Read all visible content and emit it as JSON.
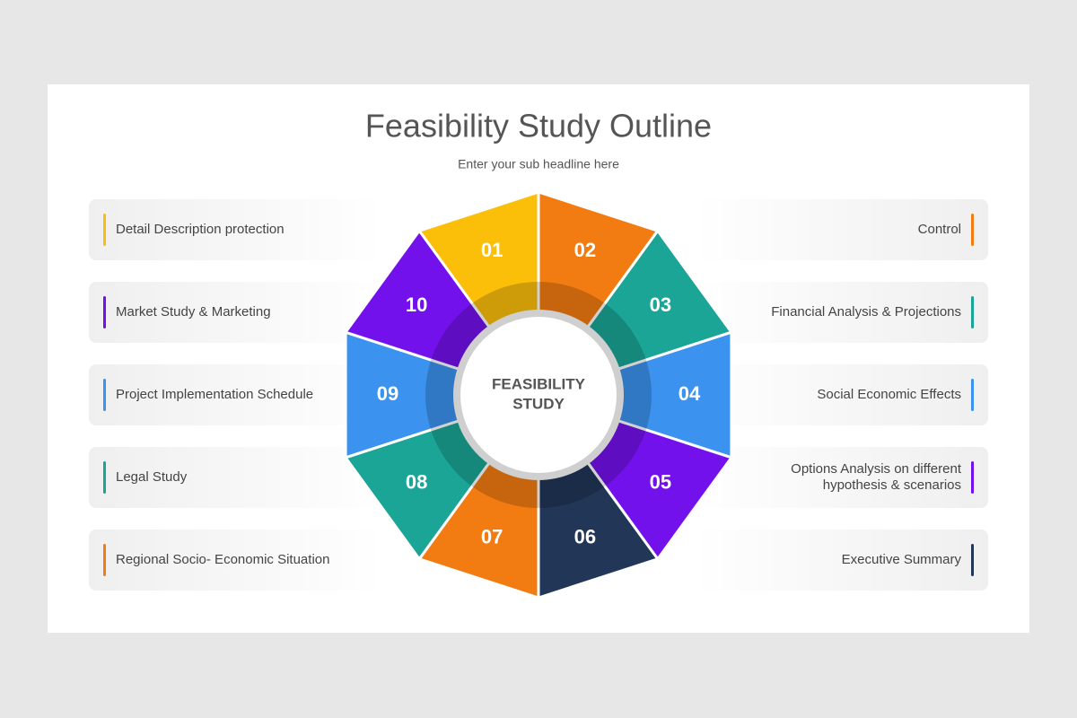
{
  "header": {
    "title": "Feasibility Study Outline",
    "subtitle": "Enter your sub headline here"
  },
  "center_label": [
    "FEASIBILITY",
    "STUDY"
  ],
  "segments": [
    {
      "number": "01",
      "color": "#fbbf0a",
      "label_lines": [
        "Detail Description protection"
      ]
    },
    {
      "number": "02",
      "color": "#f27c12",
      "label_lines": [
        "Control"
      ]
    },
    {
      "number": "03",
      "color": "#1ba597",
      "label_lines": [
        "Financial Analysis & Projections"
      ]
    },
    {
      "number": "04",
      "color": "#3b93ef",
      "label_lines": [
        "Social Economic Effects"
      ]
    },
    {
      "number": "05",
      "color": "#7311ec",
      "label_lines": [
        "Options Analysis on different",
        "hypothesis & scenarios"
      ]
    },
    {
      "number": "06",
      "color": "#223658",
      "label_lines": [
        "Executive Summary"
      ]
    },
    {
      "number": "07",
      "color": "#f27c12",
      "label_lines": [
        "Regional Socio- Economic Situation"
      ]
    },
    {
      "number": "08",
      "color": "#1ba597",
      "label_lines": [
        "Legal Study"
      ]
    },
    {
      "number": "09",
      "color": "#3b93ef",
      "label_lines": [
        "Project Implementation Schedule"
      ]
    },
    {
      "number": "10",
      "color": "#7311ec",
      "label_lines": [
        "Market Study & Marketing"
      ]
    }
  ]
}
